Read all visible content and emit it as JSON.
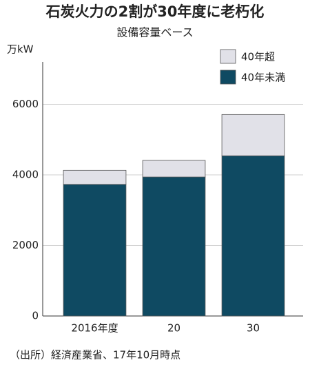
{
  "chart_data": {
    "type": "stacked_bar",
    "title": "石炭火力の2割が30年度に老朽化",
    "subtitle": "設備容量ベース",
    "y_label": "万kW",
    "categories": [
      "2016年度",
      "20",
      "30"
    ],
    "series": [
      {
        "name": "40年未満",
        "color": "#0f4a62",
        "values": [
          3730,
          3940,
          4540
        ]
      },
      {
        "name": "40年超",
        "color": "#e1e1e8",
        "values": [
          400,
          470,
          1170
        ]
      }
    ],
    "ylim": [
      0,
      7200
    ],
    "yticks": [
      0,
      2000,
      4000,
      6000
    ],
    "grid": true,
    "source": "（出所）経済産業省、17年10月時点"
  }
}
